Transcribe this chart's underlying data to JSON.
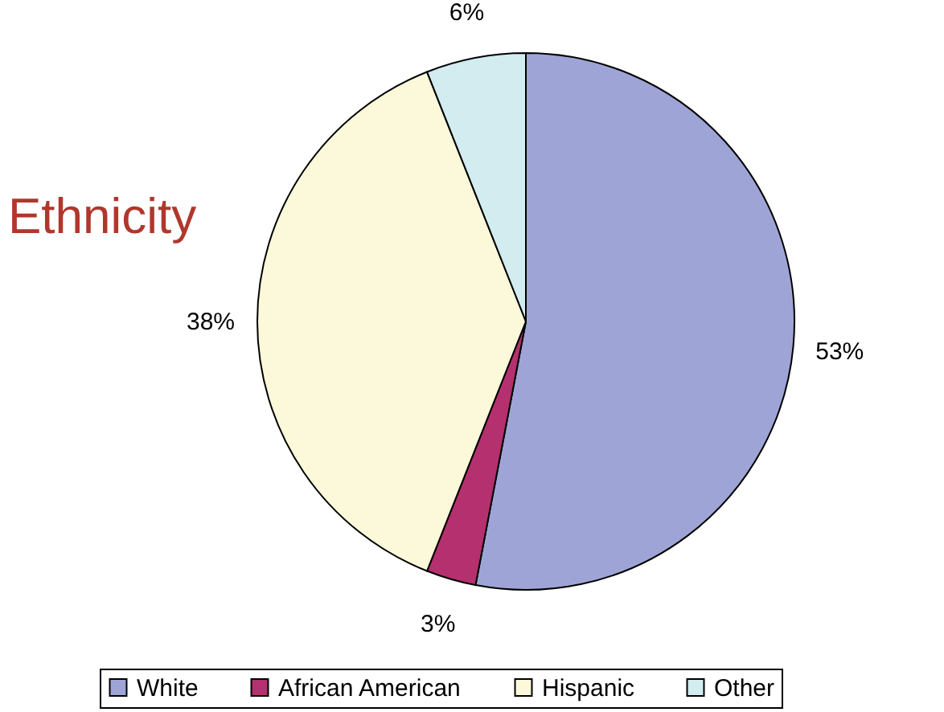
{
  "chart_data": {
    "type": "pie",
    "title": "Ethnicity",
    "categories": [
      "White",
      "African American",
      "Hispanic",
      "Other"
    ],
    "values": [
      53,
      3,
      38,
      6
    ],
    "colors": [
      "#9ea5d6",
      "#b5306e",
      "#fcf9da",
      "#d2ecef"
    ],
    "value_labels": [
      "53%",
      "3%",
      "38%",
      "6%"
    ],
    "legend": "bottom"
  }
}
